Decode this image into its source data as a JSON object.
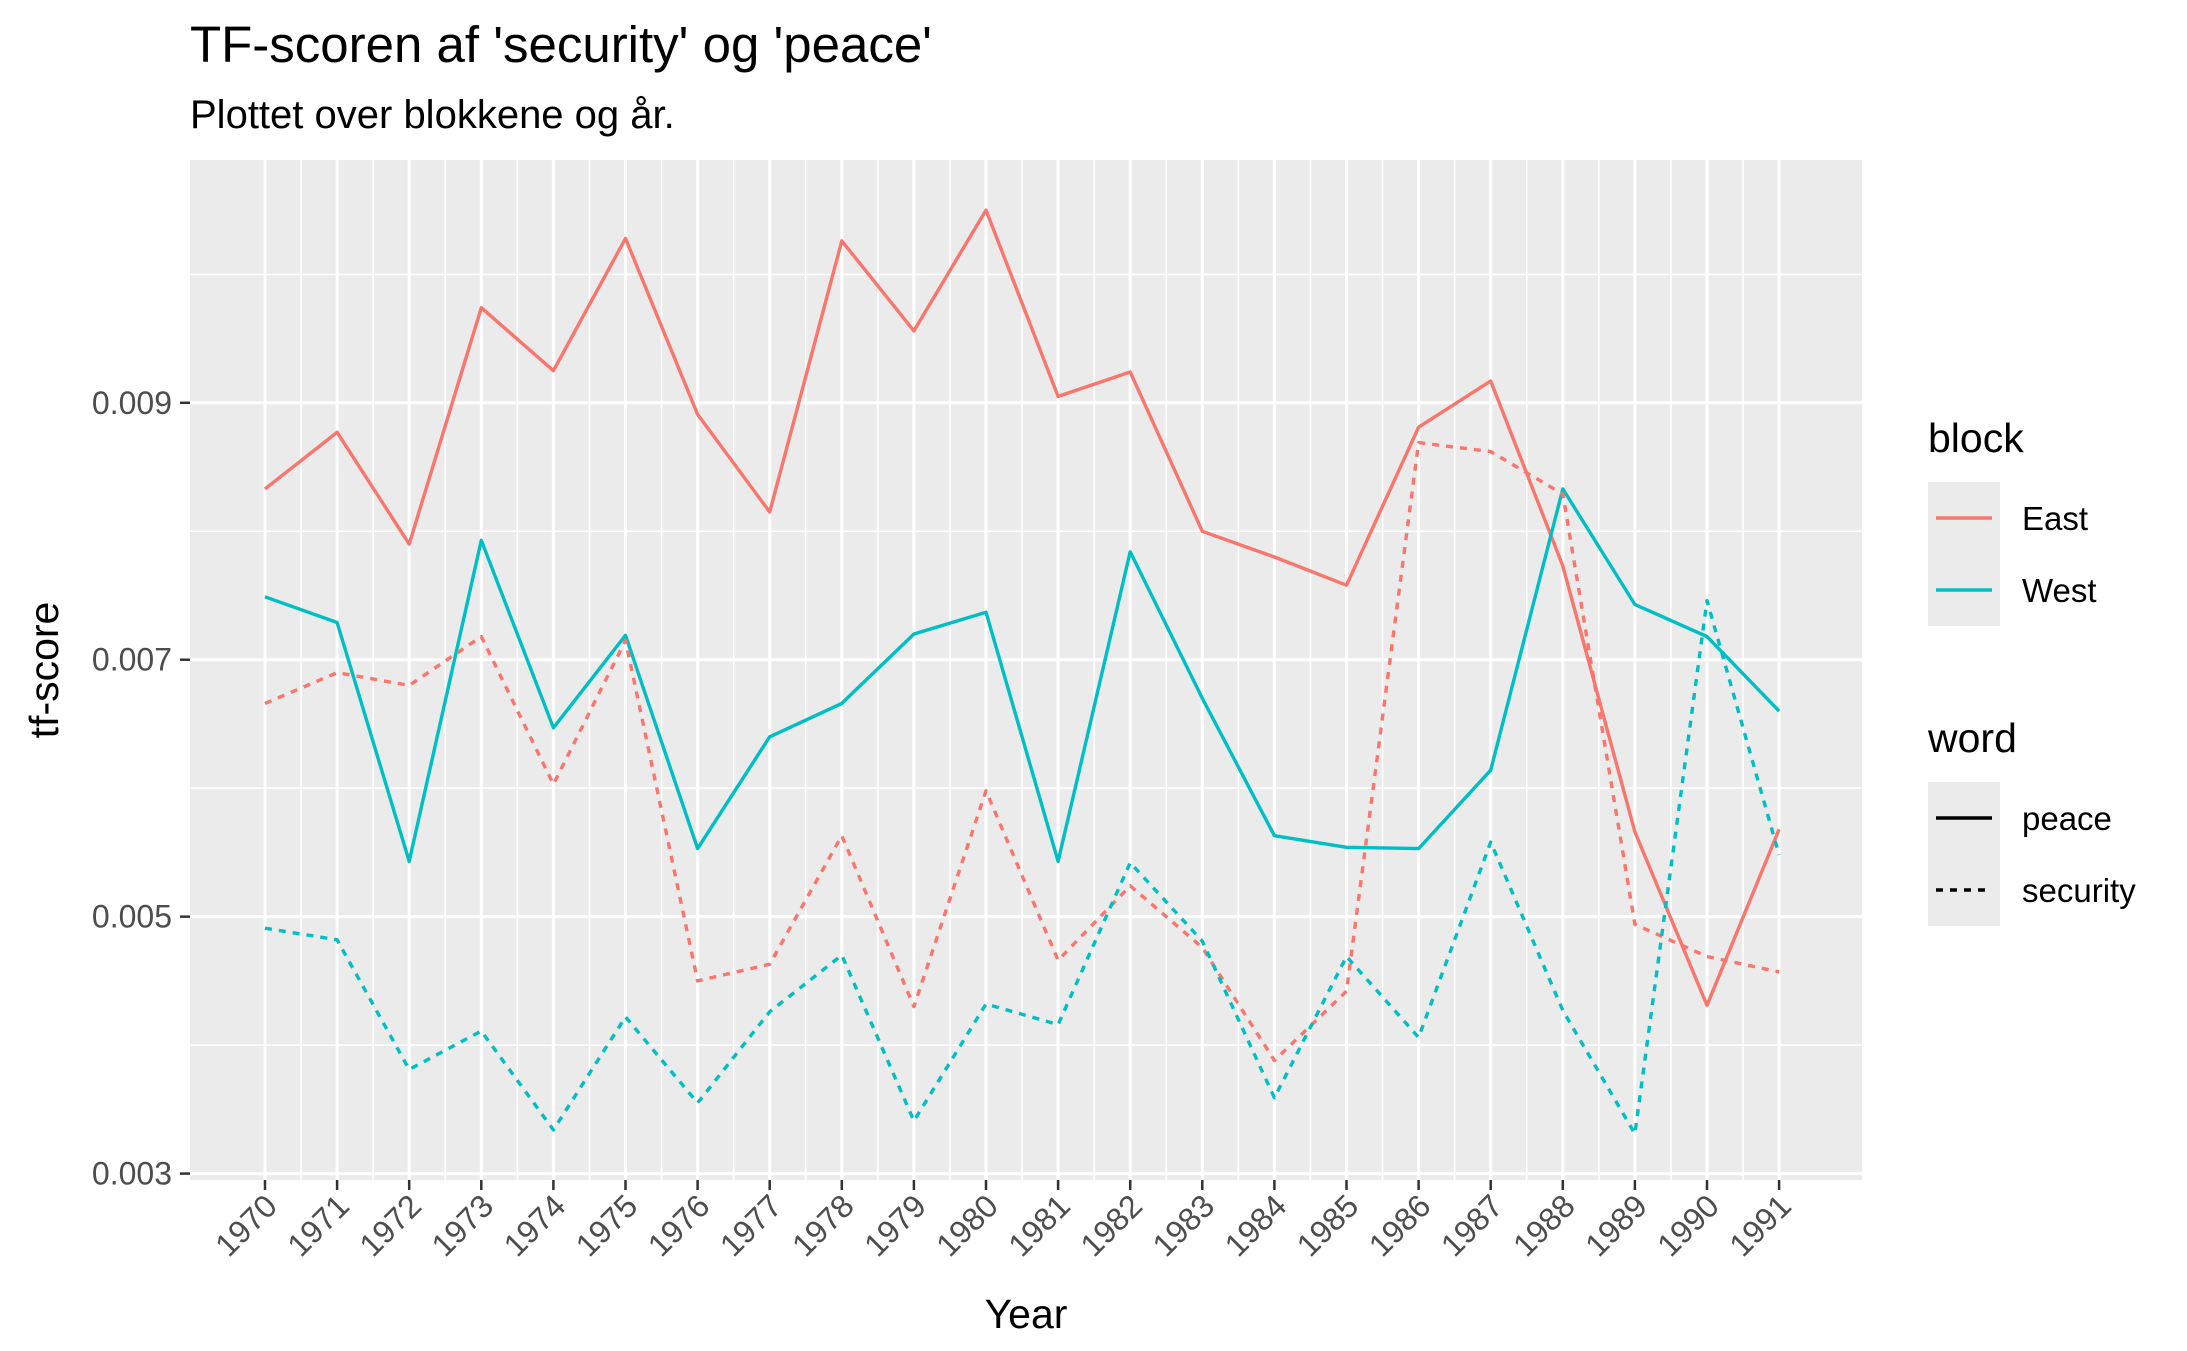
{
  "chart_data": {
    "type": "line",
    "title": "TF-scoren af 'security' og 'peace'",
    "subtitle": "Plottet over blokkene og år.",
    "xlabel": "Year",
    "ylabel": "tf-score",
    "categories": [
      "1970",
      "1971",
      "1972",
      "1973",
      "1974",
      "1975",
      "1976",
      "1977",
      "1978",
      "1979",
      "1980",
      "1981",
      "1982",
      "1983",
      "1984",
      "1985",
      "1986",
      "1987",
      "1988",
      "1989",
      "1990",
      "1991"
    ],
    "ylim": [
      0.00295,
      0.01089
    ],
    "yticks": [
      0.003,
      0.005,
      0.007,
      0.009
    ],
    "ytick_labels": [
      "0.003",
      "0.005",
      "0.007",
      "0.009"
    ],
    "grid": true,
    "legend_position": "right",
    "series": [
      {
        "block": "East",
        "word": "peace",
        "color": "#F8766D",
        "dash": "solid",
        "values": [
          0.00833,
          0.00877,
          0.0079,
          0.00974,
          0.00925,
          0.01028,
          0.00891,
          0.00815,
          0.01026,
          0.00956,
          0.0105,
          0.00905,
          0.00924,
          0.008,
          0.0078,
          0.00758,
          0.00881,
          0.00917,
          0.00773,
          0.00566,
          0.00431,
          0.00568
        ]
      },
      {
        "block": "West",
        "word": "peace",
        "color": "#00BFC4",
        "dash": "solid",
        "values": [
          0.00749,
          0.00729,
          0.00543,
          0.00793,
          0.00647,
          0.00719,
          0.00553,
          0.0064,
          0.00666,
          0.0072,
          0.00737,
          0.00543,
          0.00784,
          0.0067,
          0.00563,
          0.00554,
          0.00553,
          0.00614,
          0.00833,
          0.00743,
          0.00718,
          0.0066
        ]
      },
      {
        "block": "East",
        "word": "security",
        "color": "#F8766D",
        "dash": "dashed",
        "values": [
          0.00666,
          0.0069,
          0.0068,
          0.00718,
          0.00603,
          0.00715,
          0.0045,
          0.00463,
          0.00563,
          0.0043,
          0.00598,
          0.00466,
          0.00524,
          0.00476,
          0.00388,
          0.00442,
          0.00869,
          0.00862,
          0.00829,
          0.00494,
          0.00469,
          0.00457
        ]
      },
      {
        "block": "West",
        "word": "security",
        "color": "#00BFC4",
        "dash": "dashed",
        "values": [
          0.00491,
          0.00482,
          0.00381,
          0.00411,
          0.00334,
          0.00422,
          0.00355,
          0.00426,
          0.0047,
          0.00341,
          0.00432,
          0.00416,
          0.00542,
          0.00481,
          0.00359,
          0.00469,
          0.00406,
          0.00558,
          0.00427,
          0.00331,
          0.00746,
          0.00548
        ]
      }
    ],
    "legends": [
      {
        "title": "block",
        "items": [
          {
            "label": "East",
            "color": "#F8766D",
            "dash": "solid"
          },
          {
            "label": "West",
            "color": "#00BFC4",
            "dash": "solid"
          }
        ]
      },
      {
        "title": "word",
        "items": [
          {
            "label": "peace",
            "color": "#000000",
            "dash": "solid"
          },
          {
            "label": "security",
            "color": "#000000",
            "dash": "dashed"
          }
        ]
      }
    ]
  },
  "colors": {
    "panel_background": "#EBEBEB",
    "grid": "#FFFFFF",
    "east": "#F8766D",
    "west": "#00BFC4"
  }
}
